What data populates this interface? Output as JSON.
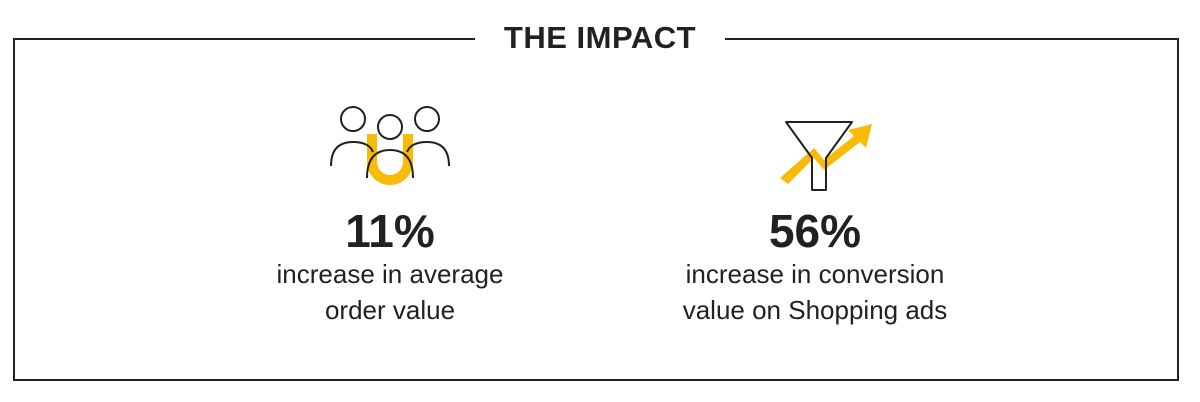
{
  "heading": "THE IMPACT",
  "colors": {
    "accent": "#F9BB05",
    "ink": "#202124"
  },
  "stats": [
    {
      "icon": "audience-icon",
      "value": "11%",
      "description": "increase in average order value"
    },
    {
      "icon": "funnel-growth-icon",
      "value": "56%",
      "description": "increase in conversion value on Shopping ads"
    }
  ]
}
